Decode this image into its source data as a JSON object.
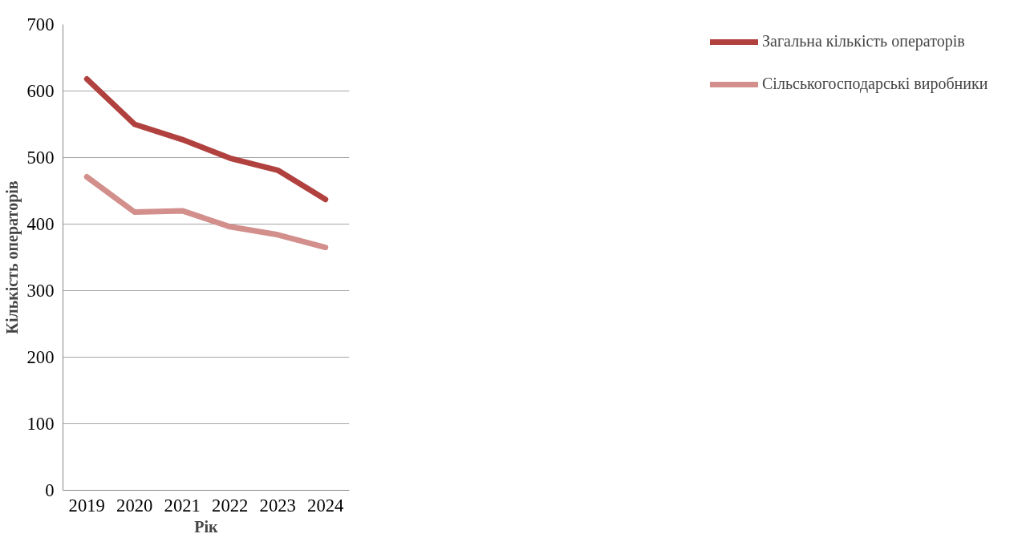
{
  "chart_data": {
    "type": "line",
    "xlabel": "Рік",
    "ylabel": "Кількість операторів",
    "categories": [
      "2019",
      "2020",
      "2021",
      "2022",
      "2023",
      "2024"
    ],
    "series": [
      {
        "name": "Загальна кількість операторів",
        "color": "#b0413e",
        "values": [
          618,
          550,
          527,
          499,
          481,
          437
        ]
      },
      {
        "name": "Сільськогосподарські виробники",
        "color": "#d28f8c",
        "values": [
          471,
          418,
          420,
          396,
          384,
          365
        ]
      }
    ],
    "ylim": [
      0,
      700
    ],
    "yticks": [
      0,
      100,
      200,
      300,
      400,
      500,
      600,
      700
    ],
    "grid": "y",
    "legend": "right",
    "marker": "none",
    "line_style": "solid"
  }
}
